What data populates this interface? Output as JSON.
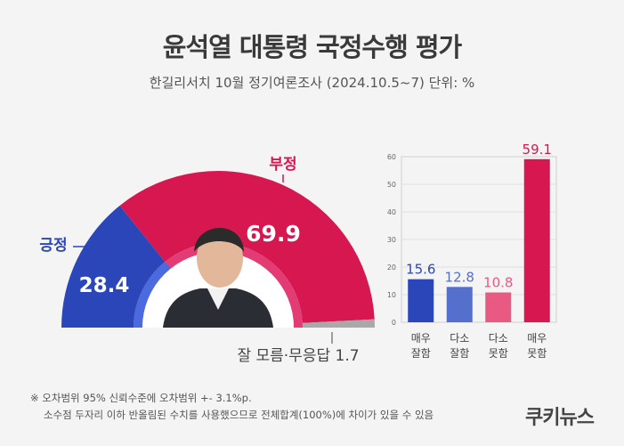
{
  "header": {
    "title": "윤석열 대통령 국정수행 평가",
    "subtitle": "한길리서치 10월 정기여론조사 (2024.10.5~7) 단위: %"
  },
  "footer": {
    "note_line1": "※ 오차범위 95% 신뢰수준에 오차범위 +- 3.1%p.",
    "note_line2": "소수점 두자리 이하 반올림된 수치를 사용했으므로 전체합계(100%)에 차이가 있을 수 있음",
    "logo": "쿠키뉴스"
  },
  "chart_data": [
    {
      "type": "pie",
      "variant": "half-donut",
      "slices": [
        {
          "label": "긍정",
          "value": 28.4,
          "color": "#2b46b8"
        },
        {
          "label": "부정",
          "value": 69.9,
          "color": "#d7174f"
        },
        {
          "label": "잘 모름·무응답",
          "value": 1.7,
          "color": "#a9a9a9"
        }
      ],
      "value_labels": [
        "28.4",
        "69.9",
        "1.7"
      ],
      "other_label": "잘 모름·무응답 1.7"
    },
    {
      "type": "bar",
      "categories": [
        "매우\n잘함",
        "다소\n잘함",
        "다소\n못함",
        "매우\n못함"
      ],
      "category_lines": [
        [
          "매우",
          "잘함"
        ],
        [
          "다소",
          "잘함"
        ],
        [
          "다소",
          "못함"
        ],
        [
          "매우",
          "못함"
        ]
      ],
      "values": [
        15.6,
        12.8,
        10.8,
        59.1
      ],
      "value_labels": [
        "15.6",
        "12.8",
        "10.8",
        "59.1"
      ],
      "colors": [
        "#2b46b8",
        "#5570cc",
        "#e85a82",
        "#d7174f"
      ],
      "ylim": [
        0,
        60
      ],
      "yticks": [
        "0",
        "10",
        "20",
        "30",
        "40",
        "50",
        "60"
      ],
      "grid": true
    }
  ]
}
